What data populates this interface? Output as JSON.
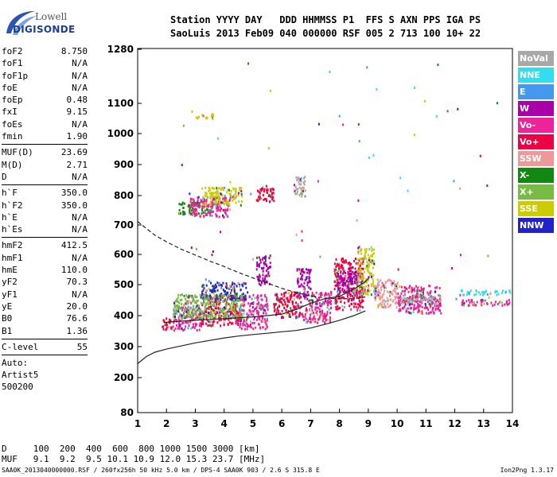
{
  "logo": {
    "line1": "Lowell",
    "line2": "DIGISONDE"
  },
  "header": {
    "row1": "Station YYYY DAY   DDD HHMMSS P1  FFS S AXN PPS IGA PS",
    "row2": "SaoLuis 2013 Feb09 040 000000 RSF 005 2 713 100 10+ 22"
  },
  "params": {
    "group1": [
      {
        "k": "foF2",
        "v": "8.750"
      },
      {
        "k": "foF1",
        "v": "N/A"
      },
      {
        "k": "foF1p",
        "v": "N/A"
      },
      {
        "k": "foE",
        "v": "N/A"
      },
      {
        "k": "foEp",
        "v": "0.48"
      },
      {
        "k": "fxI",
        "v": "9.15"
      },
      {
        "k": "foEs",
        "v": "N/A"
      },
      {
        "k": "fmin",
        "v": "1.90"
      }
    ],
    "group2": [
      {
        "k": "MUF(D)",
        "v": "23.69"
      },
      {
        "k": "M(D)",
        "v": "2.71"
      },
      {
        "k": "D",
        "v": "N/A"
      }
    ],
    "group3": [
      {
        "k": "h`F",
        "v": "350.0"
      },
      {
        "k": "h`F2",
        "v": "350.0"
      },
      {
        "k": "h`E",
        "v": "N/A"
      },
      {
        "k": "h`Es",
        "v": "N/A"
      }
    ],
    "group4": [
      {
        "k": "hmF2",
        "v": "412.5"
      },
      {
        "k": "hmF1",
        "v": "N/A"
      },
      {
        "k": "hmE",
        "v": "110.0"
      },
      {
        "k": "yF2",
        "v": "70.3"
      },
      {
        "k": "yF1",
        "v": "N/A"
      },
      {
        "k": "yE",
        "v": "20.0"
      },
      {
        "k": "B0",
        "v": "76.6"
      },
      {
        "k": "B1",
        "v": "1.36"
      }
    ],
    "group5": [
      {
        "k": "C-level",
        "v": "55"
      }
    ],
    "auto": [
      "Auto:",
      "Artist5",
      "500200"
    ]
  },
  "bottom": {
    "d_row": "D     100  200  400  600  800 1000 1500 3000 [km]",
    "muf_row": "MUF   9.1  9.2  9.5 10.1 10.9 12.0 15.3 23.7 [MHz]"
  },
  "footer": "SAA0K_2013040000000.RSF / 260fx256h 50 kHz 5.0 km / DPS-4 SAA0K 903 / 2.6 S 315.8 E",
  "version": "Ion2Png 1.3.17",
  "colors": {
    "NoVal": "#a8a8a8",
    "NNE": "#33ddee",
    "E": "#4499ee",
    "W": "#aa00aa",
    "Vo-": "#ee2299",
    "Vo+": "#ee0044",
    "SSW": "#ee9999",
    "X-": "#118811",
    "X+": "#77bb44",
    "SSE": "#cccc00",
    "NNW": "#2222cc"
  },
  "legend": [
    "NoVal",
    "NNE",
    "E",
    "W",
    "Vo-",
    "Vo+",
    "SSW",
    "X-",
    "X+",
    "SSE",
    "NNW"
  ],
  "chart_data": {
    "type": "scatter",
    "x_ticks": [
      "1",
      "2",
      "3",
      "4",
      "5",
      "6",
      "7",
      "8",
      "9",
      "10",
      "11",
      "12",
      "13",
      "14"
    ],
    "y_ticks": [
      "80",
      "200",
      "300",
      "400",
      "500",
      "600",
      "700",
      "800",
      "900",
      "1000",
      "1100",
      "1280"
    ],
    "xlim": [
      1,
      14
    ],
    "ylim": [
      80,
      1280
    ],
    "y_scale": "nonlinear",
    "grid": false,
    "legend_position": "right",
    "curves": [
      {
        "style": "solid",
        "points": [
          [
            1,
            245
          ],
          [
            1.3,
            268
          ],
          [
            1.6,
            282
          ],
          [
            2,
            292
          ],
          [
            2.5,
            302
          ],
          [
            3,
            312
          ],
          [
            3.5,
            320
          ],
          [
            4,
            328
          ],
          [
            4.5,
            334
          ],
          [
            5,
            339
          ],
          [
            5.5,
            343
          ],
          [
            6,
            348
          ],
          [
            6.5,
            352
          ],
          [
            7,
            360
          ],
          [
            7.5,
            372
          ],
          [
            8,
            385
          ],
          [
            8.5,
            400
          ],
          [
            8.9,
            415
          ]
        ]
      },
      {
        "style": "dashed",
        "points": [
          [
            1,
            712
          ],
          [
            1.3,
            688
          ],
          [
            1.6,
            665
          ],
          [
            2,
            643
          ],
          [
            2.5,
            618
          ],
          [
            3,
            598
          ],
          [
            3.5,
            578
          ],
          [
            4,
            560
          ],
          [
            4.5,
            540
          ],
          [
            5,
            522
          ],
          [
            5.5,
            505
          ],
          [
            6,
            488
          ],
          [
            6.5,
            474
          ],
          [
            7,
            463
          ],
          [
            7.5,
            457
          ],
          [
            8,
            454
          ],
          [
            8.5,
            455
          ],
          [
            8.9,
            460
          ]
        ]
      },
      {
        "style": "solid",
        "points": [
          [
            1.9,
            378
          ],
          [
            2.5,
            382
          ],
          [
            3,
            385
          ],
          [
            3.5,
            388
          ],
          [
            4,
            390
          ],
          [
            4.5,
            393
          ],
          [
            5,
            396
          ],
          [
            5.5,
            400
          ],
          [
            6,
            405
          ],
          [
            6.5,
            420
          ],
          [
            7,
            440
          ],
          [
            7.5,
            455
          ],
          [
            8,
            462
          ],
          [
            8.5,
            485
          ],
          [
            8.9,
            510
          ],
          [
            9,
            520
          ]
        ]
      }
    ],
    "traces": [
      {
        "x": [
          1.8,
          2.2
        ],
        "y": [
          355,
          395
        ],
        "mode": "Vo+"
      },
      {
        "x": [
          2.2,
          3.2
        ],
        "y": [
          355,
          430
        ],
        "mode": "Vo-"
      },
      {
        "x": [
          3.2,
          4.5
        ],
        "y": [
          370,
          470
        ],
        "mode": "Vo+"
      },
      {
        "x": [
          4.5,
          5.5
        ],
        "y": [
          360,
          470
        ],
        "mode": "Vo-"
      },
      {
        "x": [
          5.7,
          6.7
        ],
        "y": [
          395,
          480
        ],
        "mode": "Vo+"
      },
      {
        "x": [
          6.7,
          7.7
        ],
        "y": [
          380,
          480
        ],
        "mode": "Vo-"
      },
      {
        "x": [
          7.8,
          8.8
        ],
        "y": [
          420,
          590
        ],
        "mode": "Vo+"
      },
      {
        "x": [
          8.6,
          9.2
        ],
        "y": [
          470,
          630
        ],
        "mode": "SSE"
      },
      {
        "x": [
          3.2,
          4.8
        ],
        "y": [
          455,
          510
        ],
        "mode": "NNW"
      },
      {
        "x": [
          5.1,
          5.6
        ],
        "y": [
          500,
          600
        ],
        "mode": "W"
      },
      {
        "x": [
          6.5,
          7.0
        ],
        "y": [
          465,
          555
        ],
        "mode": "W"
      },
      {
        "x": [
          7.9,
          8.6
        ],
        "y": [
          470,
          550
        ],
        "mode": "W"
      },
      {
        "x": [
          2.2,
          4.6
        ],
        "y": [
          395,
          470
        ],
        "mode": "X+"
      },
      {
        "x": [
          2.4,
          3.6
        ],
        "y": [
          740,
          780
        ],
        "mode": "X-"
      },
      {
        "x": [
          2.8,
          4.2
        ],
        "y": [
          730,
          800
        ],
        "mode": "Vo-"
      },
      {
        "x": [
          3.2,
          4.6
        ],
        "y": [
          770,
          830
        ],
        "mode": "SSE"
      },
      {
        "x": [
          5.1,
          5.7
        ],
        "y": [
          780,
          835
        ],
        "mode": "Vo+"
      },
      {
        "x": [
          10.0,
          11.5
        ],
        "y": [
          410,
          500
        ],
        "mode": "Vo-"
      },
      {
        "x": [
          10.0,
          11.5
        ],
        "y": [
          440,
          470
        ],
        "mode": "NoVal"
      },
      {
        "x": [
          12.2,
          13.9
        ],
        "y": [
          470,
          485
        ],
        "mode": "NNE"
      },
      {
        "x": [
          12.2,
          13.9
        ],
        "y": [
          435,
          455
        ],
        "mode": "Vo-"
      },
      {
        "x": [
          9.2,
          10.0
        ],
        "y": [
          430,
          520
        ],
        "mode": "SSW"
      },
      {
        "x": [
          3.0,
          3.6
        ],
        "y": [
          1052,
          1068
        ],
        "mode": "SSE"
      },
      {
        "x": [
          6.4,
          6.8
        ],
        "y": [
          795,
          865
        ],
        "mode": "NoVal"
      }
    ]
  }
}
